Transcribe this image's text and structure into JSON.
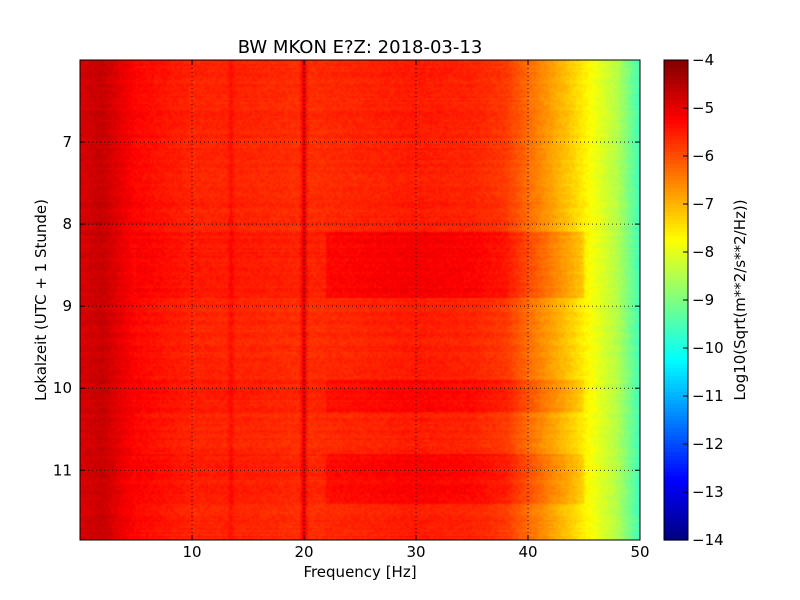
{
  "chart_data": {
    "type": "heatmap",
    "title": "BW MKON E?Z: 2018-03-13",
    "xlabel": "Frequency [Hz]",
    "ylabel": "Lokalzeit (UTC + 1 Stunde)",
    "xlim": [
      0,
      50
    ],
    "ylim": [
      6.0,
      11.85
    ],
    "y_inverted": true,
    "x_ticks": [
      10,
      20,
      30,
      40,
      50
    ],
    "y_ticks": [
      7,
      8,
      9,
      10,
      11
    ],
    "grid": true,
    "colormap": "jet",
    "colorbar": {
      "label": "Log10(Sqrt(m**2/s**2/Hz))",
      "range": [
        -14,
        -4
      ],
      "ticks": [
        -4,
        -5,
        -6,
        -7,
        -8,
        -9,
        -10,
        -11,
        -12,
        -13,
        -14
      ]
    },
    "spectrum_profile": {
      "frequency_hz": [
        0,
        2,
        5,
        10,
        15,
        20,
        25,
        30,
        35,
        38,
        40,
        42,
        44,
        46,
        48,
        50
      ],
      "log10_amplitude": [
        -4.9,
        -4.7,
        -5.3,
        -5.6,
        -5.6,
        -5.7,
        -5.6,
        -5.5,
        -5.6,
        -5.8,
        -6.3,
        -6.8,
        -7.3,
        -7.9,
        -8.5,
        -9.6
      ]
    },
    "spectral_lines_hz": [
      13.5,
      20.0
    ],
    "strong_line_hz": 20.0,
    "high_noise_periods_hours": [
      {
        "start": 8.1,
        "end": 8.9,
        "level": 0.35
      },
      {
        "start": 9.9,
        "end": 10.3,
        "level": 0.25
      },
      {
        "start": 10.8,
        "end": 11.4,
        "level": 0.3
      }
    ]
  }
}
